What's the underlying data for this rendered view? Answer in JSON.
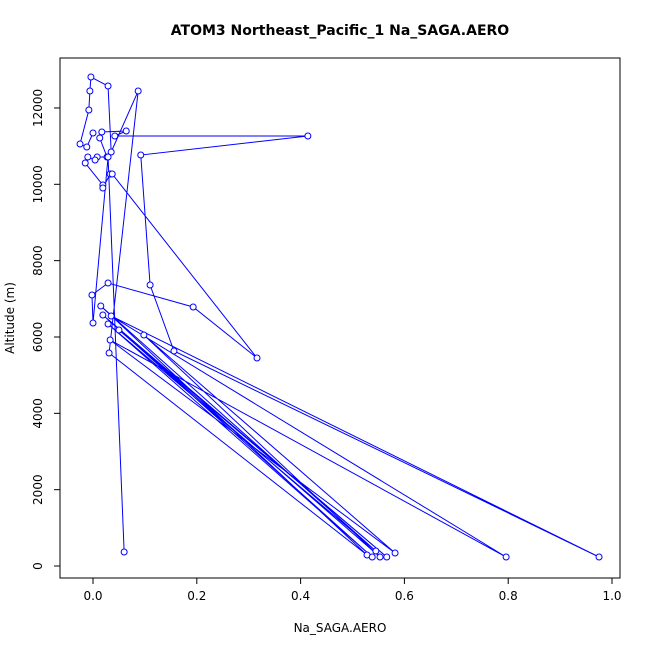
{
  "chart_data": {
    "type": "line",
    "title": "ATOM3 Northeast_Pacific_1 Na_SAGA.AERO",
    "x_label": "Na_SAGA.AERO",
    "y_label": "Altitude (m)",
    "series": [
      {
        "name": "Na_SAGA.AERO",
        "color": "#0000ff",
        "x": [
          0.0,
          -0.012,
          -0.025,
          -0.008,
          -0.006,
          -0.004,
          0.029,
          0.035,
          0.087,
          0.031,
          0.528,
          0.015,
          0.545,
          0.029,
          0.538,
          0.019,
          0.566,
          0.05,
          0.553,
          0.098,
          0.582,
          0.033,
          0.796,
          0.035,
          0.975,
          0.156,
          0.11,
          0.092,
          0.414,
          0.042,
          0.064,
          0.017,
          0.013,
          0.027,
          0.008,
          0.004,
          -0.01,
          -0.015,
          0.019,
          0.019,
          0.033,
          0.037,
          0.316,
          0.193,
          0.029,
          -0.002,
          0.0,
          0.029,
          0.06
        ],
        "values": [
          11344,
          10977,
          11056,
          11947,
          12444,
          12811,
          12575,
          10846,
          12444,
          5581,
          288,
          6812,
          393,
          6340,
          236,
          6576,
          236,
          6183,
          236,
          6052,
          341,
          5921,
          236,
          6550,
          236,
          5633,
          7362,
          10767,
          11266,
          11266,
          11397,
          11370,
          11213,
          10715,
          10715,
          10636,
          10715,
          10558,
          9981,
          9903,
          10270,
          10270,
          5450,
          6786,
          7414,
          7100,
          6366,
          10715,
          367
        ]
      }
    ],
    "xlim": [
      -0.0636,
      1.0154
    ],
    "ylim": [
      -314,
      13309
    ],
    "xticks": [
      {
        "value": 0,
        "label": "0.0"
      },
      0.2,
      0.4,
      0.6,
      0.8,
      {
        "value": 1,
        "label": "1.0"
      }
    ],
    "yticks": [
      0,
      2000,
      4000,
      6000,
      8000,
      10000,
      12000
    ]
  }
}
